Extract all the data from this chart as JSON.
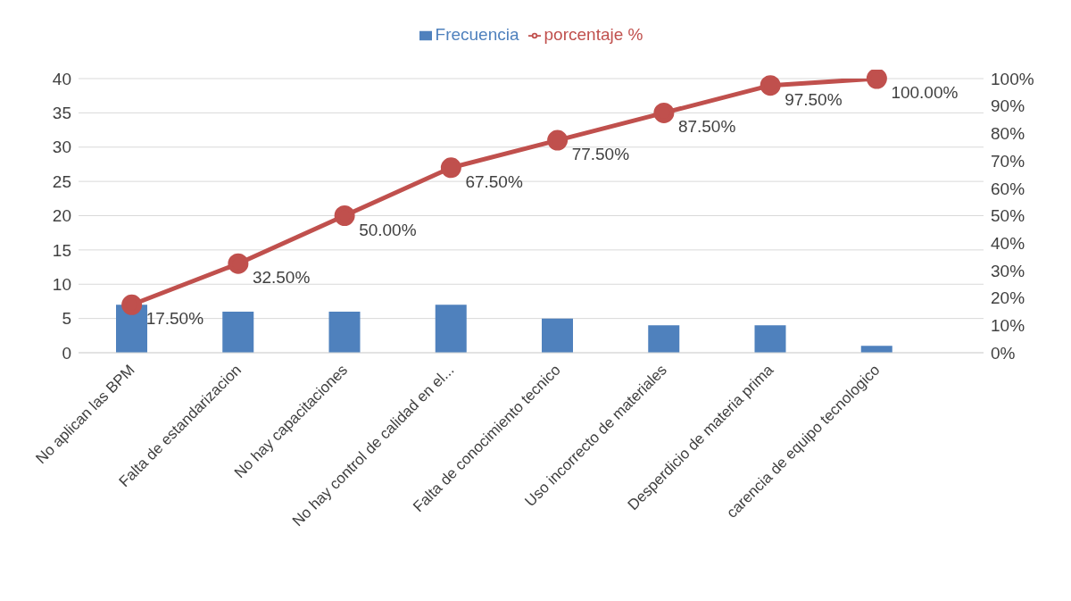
{
  "chart_data": {
    "type": "bar",
    "categories": [
      "No aplican las BPM",
      "Falta de estandarizacion",
      "No hay capacitaciones",
      "No hay control de calidad en el...",
      "Falta de conocimiento tecnico",
      "Uso incorrecto de materiales",
      "Desperdicio de materia prima",
      "carencia de equipo tecnologico"
    ],
    "series": [
      {
        "name": "Frecuencia",
        "color": "#4f81bd",
        "values": [
          7,
          6,
          6,
          7,
          5,
          4,
          4,
          1
        ]
      },
      {
        "name": "porcentaje %",
        "type": "line",
        "axis": "y2",
        "color": "#c0504d",
        "marker": "circle",
        "values": [
          17.5,
          32.5,
          50,
          67.5,
          77.5,
          87.5,
          97.5,
          100
        ],
        "value_labels": [
          "17.50%",
          "32.50%",
          "50.00%",
          "67.50%",
          "77.50%",
          "87.50%",
          "97.50%",
          "100.00%"
        ]
      }
    ],
    "ylim": [
      0,
      40
    ],
    "yticks": [
      0,
      5,
      10,
      15,
      20,
      25,
      30,
      35,
      40
    ],
    "y2lim": [
      0,
      100
    ],
    "y2ticks": [
      {
        "value": 0,
        "label": "0%"
      },
      {
        "value": 10,
        "label": "10%"
      },
      {
        "value": 20,
        "label": "20%"
      },
      {
        "value": 30,
        "label": "30%"
      },
      {
        "value": 40,
        "label": "40%"
      },
      {
        "value": 50,
        "label": "50%"
      },
      {
        "value": 60,
        "label": "60%"
      },
      {
        "value": 70,
        "label": "70%"
      },
      {
        "value": 80,
        "label": "80%"
      },
      {
        "value": 90,
        "label": "90%"
      },
      {
        "value": 100,
        "label": "100%"
      }
    ],
    "grid": "y",
    "legend": "top"
  }
}
